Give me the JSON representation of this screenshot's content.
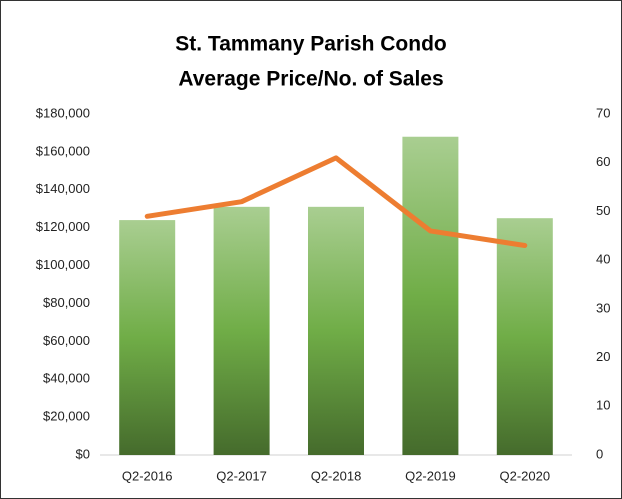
{
  "chart_data": {
    "type": "bar_line",
    "title": [
      "St. Tammany Parish Condo",
      "Average Price/No. of Sales"
    ],
    "categories": [
      "Q2-2016",
      "Q2-2017",
      "Q2-2018",
      "Q2-2019",
      "Q2-2020"
    ],
    "series": [
      {
        "type": "bar",
        "color": "#70ad47",
        "values": [
          124000,
          131000,
          131000,
          168000,
          125000
        ]
      },
      {
        "type": "line",
        "axis": "y2",
        "color": "#ed7d31",
        "values": [
          49,
          52,
          61,
          46,
          43
        ]
      }
    ],
    "ylim": [
      0,
      180000
    ],
    "yticks": [
      {
        "value": 0,
        "label": "$0"
      },
      {
        "value": 20000,
        "label": "$20,000"
      },
      {
        "value": 40000,
        "label": "$40,000"
      },
      {
        "value": 60000,
        "label": "$60,000"
      },
      {
        "value": 80000,
        "label": "$80,000"
      },
      {
        "value": 100000,
        "label": "$100,000"
      },
      {
        "value": 120000,
        "label": "$120,000"
      },
      {
        "value": 140000,
        "label": "$140,000"
      },
      {
        "value": 160000,
        "label": "$160,000"
      },
      {
        "value": 180000,
        "label": "$180,000"
      }
    ],
    "y2lim": [
      0,
      70
    ],
    "y2ticks": [
      0,
      10,
      20,
      30,
      40,
      50,
      60,
      70
    ],
    "grid": false
  }
}
